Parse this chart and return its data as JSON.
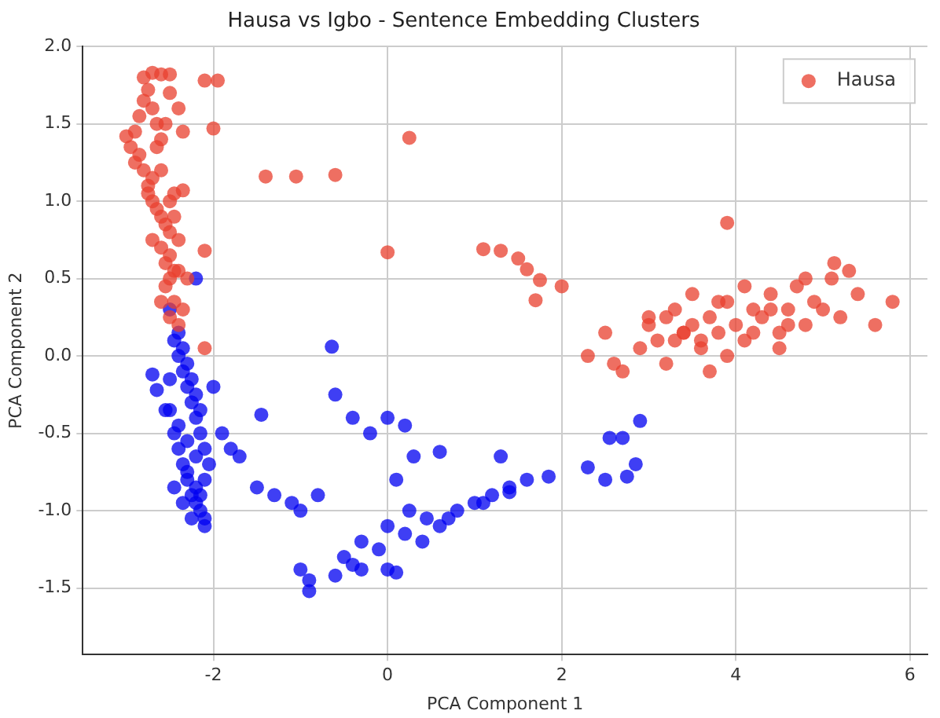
{
  "chart_data": {
    "type": "scatter",
    "title": "Hausa vs Igbo - Sentence Embedding Clusters",
    "xlabel": "PCA Component 1",
    "ylabel": "PCA Component 2",
    "xlim": [
      -3.5,
      6.2
    ],
    "ylim": [
      -1.93,
      2.0
    ],
    "xticks": [
      -2,
      0,
      2,
      4,
      6
    ],
    "yticks": [
      -1.5,
      {
        "value": -1,
        "label": "-1.0"
      },
      -0.5,
      {
        "value": 0,
        "label": "0.0"
      },
      0.5,
      {
        "value": 1,
        "label": "1.0"
      },
      1.5,
      {
        "value": 2,
        "label": "2.0"
      }
    ],
    "grid": true,
    "legend": "top right",
    "marker": "circle",
    "series": [
      {
        "name": "Hausa",
        "color": "#e8402f",
        "x": [
          -2.9,
          -2.85,
          -2.95,
          -3.0,
          -2.8,
          -2.75,
          -2.7,
          -2.65,
          -2.85,
          -2.8,
          -2.75,
          -2.7,
          -2.9,
          -2.6,
          -2.55,
          -2.7,
          -2.65,
          -2.6,
          -2.55,
          -2.5,
          -2.75,
          -2.7,
          -2.6,
          -2.5,
          -2.55,
          -2.45,
          -2.6,
          -2.5,
          -2.45,
          -2.4,
          -2.55,
          -2.5,
          -2.4,
          -2.45,
          -2.35,
          -2.6,
          -2.5,
          -2.4,
          -2.3,
          -2.5,
          -2.35,
          -2.45,
          -2.8,
          -2.7,
          -2.6,
          -2.5,
          -2.4,
          -2.65,
          -2.1,
          -1.95,
          -2.0,
          -1.4,
          -1.05,
          -0.6,
          0.25,
          0.0,
          -2.1,
          -2.35,
          -2.1,
          1.1,
          1.3,
          1.5,
          1.6,
          1.75,
          1.7,
          2.0,
          2.3,
          2.5,
          2.7,
          2.9,
          3.0,
          3.1,
          3.2,
          3.3,
          3.4,
          3.5,
          3.6,
          3.7,
          3.8,
          3.9,
          4.0,
          4.1,
          4.2,
          4.3,
          4.4,
          4.5,
          4.6,
          4.7,
          4.8,
          4.9,
          5.0,
          5.1,
          5.2,
          5.4,
          5.6,
          5.8,
          3.0,
          3.3,
          3.6,
          3.9,
          4.2,
          4.5,
          3.2,
          3.5,
          3.8,
          4.1,
          4.4,
          4.8,
          5.13,
          3.9,
          2.6,
          3.4,
          3.7,
          4.6,
          5.3
        ],
        "values": [
          1.45,
          1.55,
          1.35,
          1.42,
          1.65,
          1.72,
          1.6,
          1.5,
          1.3,
          1.2,
          1.1,
          1.0,
          1.25,
          1.4,
          1.5,
          1.15,
          0.95,
          0.9,
          0.85,
          0.8,
          1.05,
          0.75,
          0.7,
          0.65,
          0.6,
          0.55,
          1.2,
          1.0,
          0.9,
          0.75,
          0.45,
          0.5,
          0.55,
          0.35,
          0.3,
          0.35,
          0.25,
          0.2,
          0.5,
          1.7,
          1.45,
          1.05,
          1.8,
          1.83,
          1.82,
          1.82,
          1.6,
          1.35,
          1.78,
          1.78,
          1.47,
          1.16,
          1.16,
          1.17,
          1.41,
          0.67,
          0.68,
          1.07,
          0.05,
          0.69,
          0.68,
          0.63,
          0.56,
          0.49,
          0.36,
          0.45,
          0.0,
          0.15,
          -0.1,
          0.05,
          0.25,
          0.1,
          -0.05,
          0.3,
          0.15,
          0.2,
          0.05,
          0.25,
          0.15,
          0.35,
          0.2,
          0.1,
          0.3,
          0.25,
          0.4,
          0.15,
          0.3,
          0.45,
          0.2,
          0.35,
          0.3,
          0.5,
          0.25,
          0.4,
          0.2,
          0.35,
          0.2,
          0.1,
          0.1,
          0.0,
          0.15,
          0.05,
          0.25,
          0.4,
          0.35,
          0.45,
          0.3,
          0.5,
          0.6,
          0.86,
          -0.05,
          0.15,
          -0.1,
          0.2,
          0.55
        ]
      },
      {
        "color": "#0000f0",
        "x": [
          -2.5,
          -2.45,
          -2.4,
          -2.35,
          -2.3,
          -2.25,
          -2.2,
          -2.15,
          -2.1,
          -2.05,
          -2.5,
          -2.45,
          -2.4,
          -2.35,
          -2.3,
          -2.25,
          -2.2,
          -2.15,
          -2.1,
          -2.4,
          -2.35,
          -2.3,
          -2.25,
          -2.2,
          -2.15,
          -2.4,
          -2.3,
          -2.2,
          -2.1,
          -2.35,
          -2.25,
          -2.15,
          -2.3,
          -2.2,
          -2.1,
          -2.45,
          -2.7,
          -2.65,
          -2.55,
          -2.5,
          -2.0,
          -2.2,
          -0.64,
          -1.9,
          -1.8,
          -1.7,
          -1.5,
          -1.45,
          -1.3,
          -1.1,
          -1.0,
          -0.8,
          -0.6,
          -0.4,
          -0.2,
          0.0,
          0.2,
          0.3,
          0.1,
          0.25,
          0.45,
          0.6,
          0.8,
          1.0,
          1.2,
          1.4,
          -1.0,
          -0.9,
          -0.9,
          -0.5,
          -0.4,
          -0.3,
          -0.6,
          0.0,
          0.1,
          -0.3,
          0.4,
          0.7,
          1.1,
          1.4,
          1.6,
          1.85,
          2.3,
          2.5,
          2.75,
          2.55,
          2.7,
          2.85,
          2.9,
          0.6,
          1.3,
          -0.1,
          0.0,
          0.2
        ],
        "values": [
          0.3,
          0.1,
          0.0,
          -0.1,
          -0.2,
          -0.3,
          -0.4,
          -0.5,
          -0.6,
          -0.7,
          -0.35,
          -0.5,
          -0.6,
          -0.7,
          -0.8,
          -0.9,
          -0.95,
          -1.0,
          -1.05,
          0.15,
          0.05,
          -0.05,
          -0.15,
          -0.25,
          -0.35,
          -0.45,
          -0.55,
          -0.65,
          -0.8,
          -0.95,
          -1.05,
          -0.9,
          -0.75,
          -0.85,
          -1.1,
          -0.85,
          -0.12,
          -0.22,
          -0.35,
          -0.15,
          -0.2,
          0.5,
          0.06,
          -0.5,
          -0.6,
          -0.65,
          -0.85,
          -0.38,
          -0.9,
          -0.95,
          -1.0,
          -0.9,
          -0.25,
          -0.4,
          -0.5,
          -0.4,
          -0.45,
          -0.65,
          -0.8,
          -1.0,
          -1.05,
          -1.1,
          -1.0,
          -0.95,
          -0.9,
          -0.85,
          -1.38,
          -1.45,
          -1.52,
          -1.3,
          -1.35,
          -1.38,
          -1.42,
          -1.38,
          -1.4,
          -1.2,
          -1.2,
          -1.05,
          -0.95,
          -0.88,
          -0.8,
          -0.78,
          -0.72,
          -0.8,
          -0.78,
          -0.53,
          -0.53,
          -0.7,
          -0.42,
          -0.62,
          -0.65,
          -1.25,
          -1.1,
          -1.15
        ]
      }
    ]
  }
}
